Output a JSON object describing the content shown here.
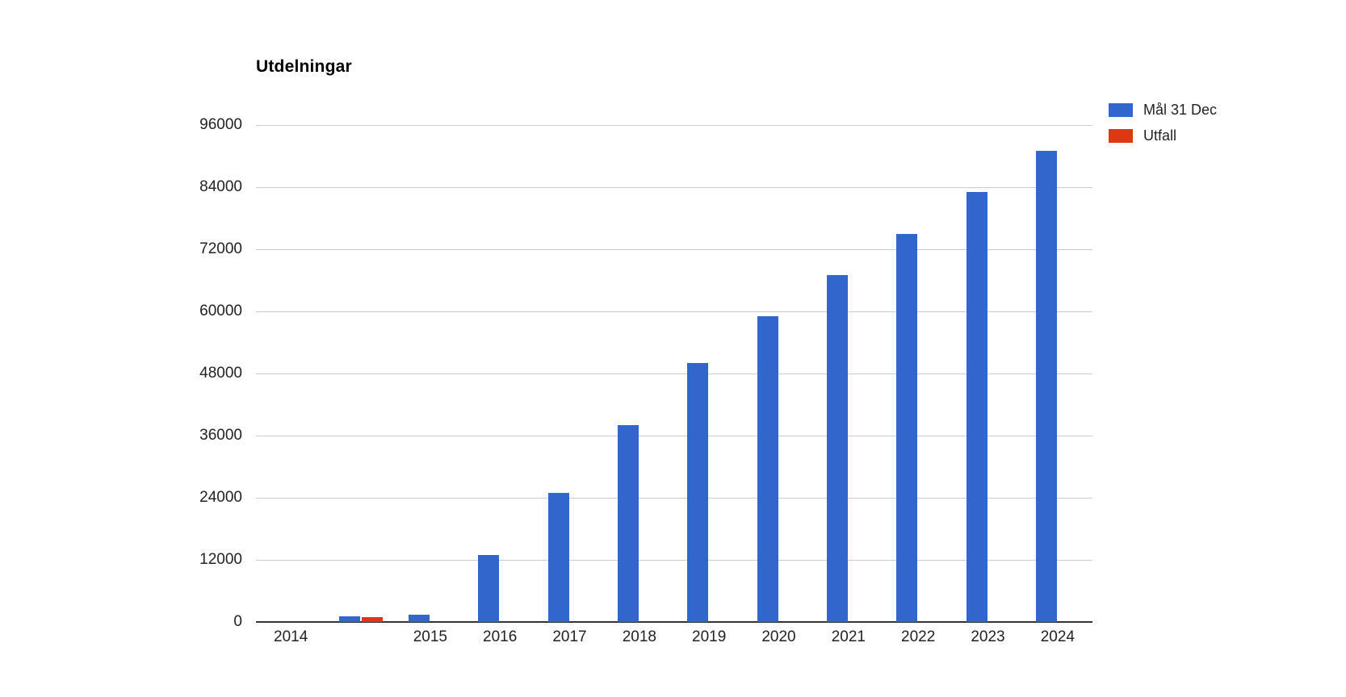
{
  "chart_data": {
    "type": "bar",
    "title": "Utdelningar",
    "categories": [
      "2014",
      "",
      "2015",
      "2016",
      "2017",
      "2018",
      "2019",
      "2020",
      "2021",
      "2022",
      "2023",
      "2024"
    ],
    "series": [
      {
        "name": "Mål 31 Dec",
        "color": "#3366CC",
        "values": [
          0,
          1100,
          1400,
          13000,
          25000,
          38000,
          50000,
          59000,
          67000,
          75000,
          83000,
          91000
        ]
      },
      {
        "name": "Utfall",
        "color": "#DC3912",
        "values": [
          0,
          900,
          0,
          0,
          0,
          0,
          0,
          0,
          0,
          0,
          0,
          0
        ]
      }
    ],
    "y_ticks": [
      0,
      12000,
      24000,
      36000,
      48000,
      60000,
      72000,
      84000,
      96000
    ],
    "ylim": [
      0,
      96000
    ],
    "xlabel": "",
    "ylabel": "",
    "grid": true,
    "legend_position": "top-right"
  },
  "legend": {
    "entries": [
      {
        "label": "Mål 31 Dec",
        "color": "#3366CC"
      },
      {
        "label": "Utfall",
        "color": "#DC3912"
      }
    ]
  },
  "colors": {
    "background": "#FFFFFF",
    "gridline": "#CCCCCC",
    "baseline": "#333333",
    "axis_text": "#222222",
    "title_text": "#000000"
  }
}
